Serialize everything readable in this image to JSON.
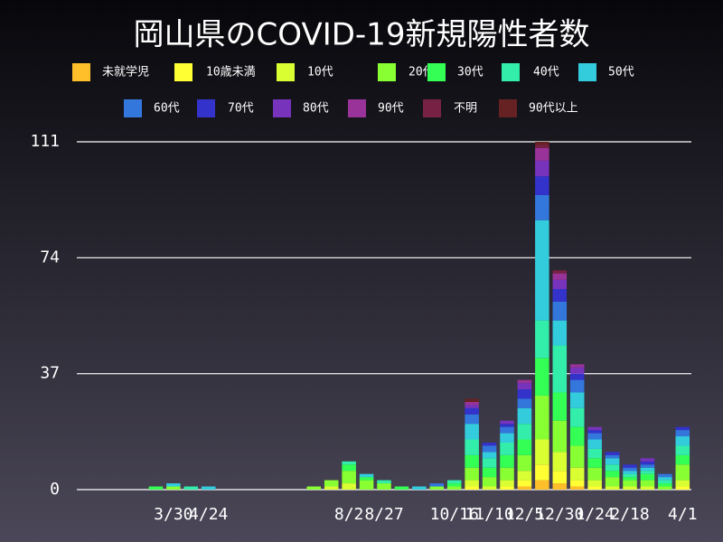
{
  "chart_data": {
    "type": "stacked_bar",
    "title": "岡山県のCOVID-19新規陽性者数",
    "legend": "top",
    "categories": [
      null,
      null,
      null,
      null,
      null,
      "3/30",
      null,
      "4/24",
      null,
      null,
      null,
      null,
      null,
      null,
      null,
      "8/2",
      null,
      "8/27",
      null,
      null,
      null,
      "10/16",
      null,
      "11/10",
      null,
      "12/5",
      null,
      "12/30",
      null,
      "1/24",
      null,
      "2/18",
      null,
      null,
      "4/1"
    ],
    "ylim": [
      0,
      111
    ],
    "yticks": [
      0,
      37,
      74,
      111
    ],
    "grid": true,
    "series": [
      {
        "name": "未就学児",
        "color": "#ffbf2a",
        "values": [
          0,
          0,
          0,
          0,
          0,
          0,
          0,
          0,
          0,
          0,
          0,
          0,
          0,
          0,
          0,
          0,
          0,
          0,
          0,
          0,
          0,
          0,
          0,
          0,
          0,
          1,
          3,
          2,
          1,
          0,
          0,
          0,
          0,
          0,
          0
        ]
      },
      {
        "name": "10歳未満",
        "color": "#ffff33",
        "values": [
          0,
          0,
          0,
          0,
          0,
          0,
          0,
          0,
          0,
          0,
          0,
          0,
          0,
          0,
          0,
          0,
          0,
          0,
          0,
          0,
          0,
          0,
          1,
          0,
          1,
          2,
          5,
          4,
          2,
          1,
          0,
          0,
          0,
          0,
          1
        ]
      },
      {
        "name": "10代",
        "color": "#d9ff33",
        "values": [
          0,
          0,
          0,
          0,
          0,
          0,
          0,
          0,
          0,
          0,
          0,
          0,
          0,
          0,
          1,
          2,
          0,
          0,
          0,
          0,
          0,
          0,
          2,
          1,
          2,
          3,
          8,
          6,
          4,
          2,
          1,
          1,
          1,
          0,
          2
        ]
      },
      {
        "name": "20代",
        "color": "#88ff33",
        "values": [
          0,
          0,
          0,
          0,
          0,
          1,
          0,
          0,
          0,
          0,
          0,
          0,
          0,
          1,
          2,
          4,
          3,
          2,
          0,
          0,
          1,
          1,
          4,
          3,
          4,
          5,
          14,
          10,
          7,
          4,
          3,
          2,
          2,
          1,
          5
        ]
      },
      {
        "name": "30代",
        "color": "#33ff55",
        "values": [
          0,
          0,
          0,
          0,
          1,
          0,
          0,
          0,
          0,
          0,
          0,
          0,
          0,
          0,
          0,
          2,
          1,
          0,
          1,
          0,
          0,
          1,
          4,
          3,
          4,
          5,
          12,
          9,
          6,
          3,
          2,
          1,
          2,
          1,
          3
        ]
      },
      {
        "name": "40代",
        "color": "#33eeaa",
        "values": [
          0,
          0,
          0,
          0,
          0,
          0,
          1,
          0,
          0,
          0,
          0,
          0,
          0,
          0,
          0,
          1,
          0,
          1,
          0,
          0,
          0,
          1,
          5,
          3,
          4,
          5,
          12,
          15,
          6,
          3,
          2,
          1,
          1,
          1,
          3
        ]
      },
      {
        "name": "50代",
        "color": "#33ccdd",
        "values": [
          0,
          0,
          0,
          0,
          0,
          1,
          0,
          1,
          0,
          0,
          0,
          0,
          0,
          0,
          0,
          0,
          1,
          0,
          0,
          1,
          0,
          0,
          5,
          2,
          3,
          5,
          32,
          8,
          5,
          3,
          2,
          1,
          1,
          1,
          3
        ]
      },
      {
        "name": "60代",
        "color": "#3377dd",
        "values": [
          0,
          0,
          0,
          0,
          0,
          0,
          0,
          0,
          0,
          0,
          0,
          0,
          0,
          0,
          0,
          0,
          0,
          0,
          0,
          0,
          1,
          0,
          3,
          2,
          2,
          3,
          8,
          6,
          4,
          2,
          1,
          1,
          1,
          1,
          2
        ]
      },
      {
        "name": "70代",
        "color": "#3333cc",
        "values": [
          0,
          0,
          0,
          0,
          0,
          0,
          0,
          0,
          0,
          0,
          0,
          0,
          0,
          0,
          0,
          0,
          0,
          0,
          0,
          0,
          0,
          0,
          2,
          1,
          1,
          3,
          6,
          4,
          2,
          1,
          1,
          1,
          1,
          0,
          1
        ]
      },
      {
        "name": "80代",
        "color": "#7733bb",
        "values": [
          0,
          0,
          0,
          0,
          0,
          0,
          0,
          0,
          0,
          0,
          0,
          0,
          0,
          0,
          0,
          0,
          0,
          0,
          0,
          0,
          0,
          0,
          1,
          0,
          1,
          2,
          5,
          3,
          2,
          1,
          0,
          0,
          1,
          0,
          0
        ]
      },
      {
        "name": "90代",
        "color": "#993399",
        "values": [
          0,
          0,
          0,
          0,
          0,
          0,
          0,
          0,
          0,
          0,
          0,
          0,
          0,
          0,
          0,
          0,
          0,
          0,
          0,
          0,
          0,
          0,
          1,
          0,
          0,
          1,
          4,
          2,
          1,
          0,
          0,
          0,
          0,
          0,
          0
        ]
      },
      {
        "name": "不明",
        "color": "#772244",
        "values": [
          0,
          0,
          0,
          0,
          0,
          0,
          0,
          0,
          0,
          0,
          0,
          0,
          0,
          0,
          0,
          0,
          0,
          0,
          0,
          0,
          0,
          0,
          0,
          0,
          0,
          0,
          1,
          1,
          0,
          0,
          0,
          0,
          0,
          0,
          0
        ]
      },
      {
        "name": "90代以上",
        "color": "#662222",
        "values": [
          0,
          0,
          0,
          0,
          0,
          0,
          0,
          0,
          0,
          0,
          0,
          0,
          0,
          0,
          0,
          0,
          0,
          0,
          0,
          0,
          0,
          0,
          1,
          0,
          0,
          0,
          1,
          0,
          0,
          0,
          0,
          0,
          0,
          0,
          0
        ]
      }
    ]
  }
}
